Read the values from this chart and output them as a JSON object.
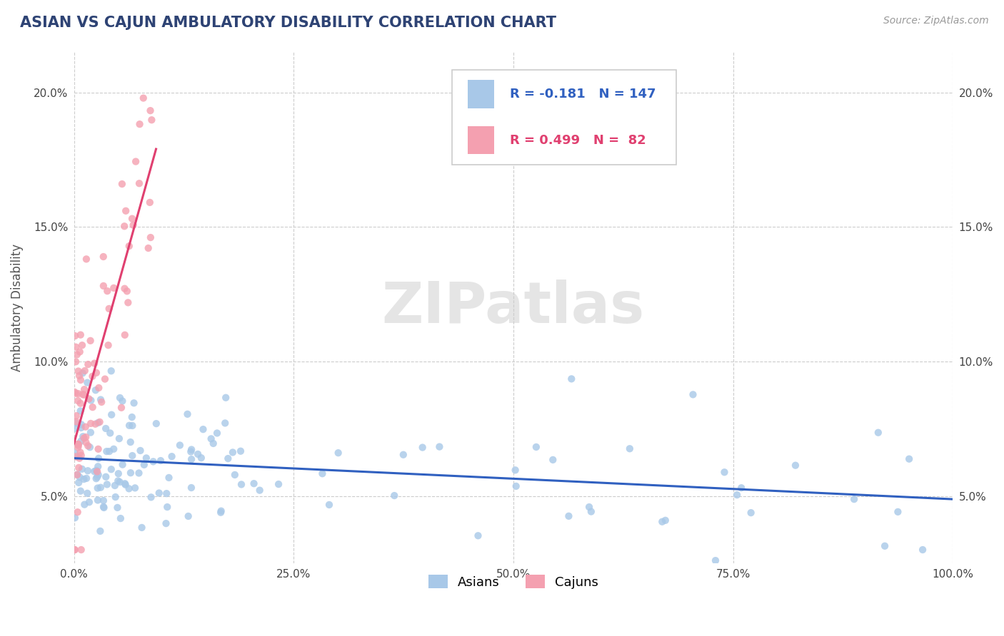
{
  "title": "ASIAN VS CAJUN AMBULATORY DISABILITY CORRELATION CHART",
  "source": "Source: ZipAtlas.com",
  "ylabel": "Ambulatory Disability",
  "xlim": [
    0.0,
    1.0
  ],
  "ylim": [
    0.025,
    0.215
  ],
  "yticks": [
    0.05,
    0.1,
    0.15,
    0.2
  ],
  "ytick_labels": [
    "5.0%",
    "10.0%",
    "15.0%",
    "20.0%"
  ],
  "xticks": [
    0.0,
    0.25,
    0.5,
    0.75,
    1.0
  ],
  "xtick_labels": [
    "0.0%",
    "25.0%",
    "50.0%",
    "75.0%",
    "100.0%"
  ],
  "asian_color": "#a8c8e8",
  "cajun_color": "#f4a0b0",
  "asian_line_color": "#3060c0",
  "cajun_line_color": "#e04070",
  "asian_R": -0.181,
  "asian_N": 147,
  "cajun_R": 0.499,
  "cajun_N": 82,
  "watermark": "ZIPatlas",
  "background_color": "#ffffff",
  "grid_color": "#cccccc",
  "title_color": "#2e4374",
  "title_fontsize": 15,
  "axis_label_color": "#555555",
  "source_color": "#999999"
}
